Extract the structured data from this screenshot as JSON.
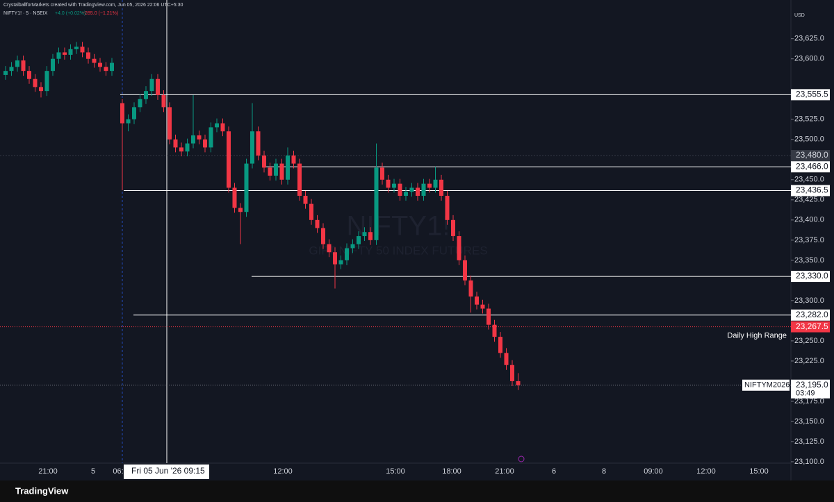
{
  "chart_data": {
    "type": "candlestick",
    "header": "CrystalballforMarkets created with TradingView.com, Jun 05, 2026 22:06 UTC+5:30",
    "symbol": "NIFTY1! · 5 · NSEIX",
    "change": "+4.0 (+0.02%)",
    "day_change": "−285.0 (−1.21%)",
    "watermark": "NIFTY1!",
    "watermark_sub": "GIFT NIFTY 50 INDEX FUTURES",
    "currency": "USD",
    "brand": "TradingView",
    "up_color": "#089981",
    "down_color": "#f23645",
    "ylim": [
      23100,
      23673
    ],
    "yticks": [
      {
        "value": 23625,
        "label": "23,625.0"
      },
      {
        "value": 23600,
        "label": "23,600.0"
      },
      {
        "value": 23525,
        "label": "23,525.0"
      },
      {
        "value": 23500,
        "label": "23,500.0"
      },
      {
        "value": 23450,
        "label": "23,450.0"
      },
      {
        "value": 23425,
        "label": "23,425.0"
      },
      {
        "value": 23400,
        "label": "23,400.0"
      },
      {
        "value": 23375,
        "label": "23,375.0"
      },
      {
        "value": 23350,
        "label": "23,350.0"
      },
      {
        "value": 23300,
        "label": "23,300.0"
      },
      {
        "value": 23250,
        "label": "23,250.0"
      },
      {
        "value": 23225,
        "label": "23,225.0"
      },
      {
        "value": 23175,
        "label": "23,175.0"
      },
      {
        "value": 23150,
        "label": "23,150.0"
      },
      {
        "value": 23125,
        "label": "23,125.0"
      },
      {
        "value": 23100,
        "label": "23,100.0"
      }
    ],
    "xaxis_labels": [
      "21:00",
      "5",
      "06:",
      "12:00",
      "15:00",
      "18:00",
      "21:00",
      "6",
      "8",
      "09:00",
      "12:00",
      "15:00"
    ],
    "crosshair_time": "Fri 05 Jun '26  09:15",
    "levels": [
      {
        "value": 23555.5,
        "label": "23,555.5"
      },
      {
        "value": 23466,
        "label": "23,466.0"
      },
      {
        "value": 23436.5,
        "label": "23,436.5"
      },
      {
        "value": 23330,
        "label": "23,330.0"
      },
      {
        "value": 23282,
        "label": "23,282.0"
      }
    ],
    "crosshair_price": {
      "value": 23480,
      "label": "23,480.0"
    },
    "daily_high": {
      "value": 23267.5,
      "label": "23,267.5",
      "name": "Daily High Range"
    },
    "last_price": {
      "value": 23195,
      "label": "23,195.0",
      "symbol": "NIFTYM2026",
      "countdown": "03:49"
    },
    "open": [
      23580,
      23585,
      23590,
      23598,
      23585,
      23575,
      23565,
      23560,
      23585,
      23600,
      23608,
      23605,
      23612,
      23615,
      23608,
      23600,
      23595,
      23590,
      23585,
      23545,
      23520,
      23525,
      23540,
      23550,
      23560,
      23575,
      23555,
      23540,
      23500,
      23490,
      23485,
      23495,
      23505,
      23500,
      23490,
      23515,
      23520,
      23510,
      23440,
      23415,
      23410,
      23470,
      23510,
      23480,
      23465,
      23455,
      23470,
      23450,
      23480,
      23470,
      23430,
      23420,
      23400,
      23390,
      23370,
      23360,
      23345,
      23350,
      23365,
      23370,
      23380,
      23385,
      23375,
      23465,
      23450,
      23440,
      23445,
      23430,
      23435,
      23440,
      23430,
      23445,
      23440,
      23450,
      23430,
      23400,
      23380,
      23350,
      23325,
      23305,
      23295,
      23290,
      23270,
      23255,
      23235,
      23220,
      23200
    ],
    "high": [
      23591,
      23596,
      23604,
      23604,
      23591,
      23581,
      23571,
      23591,
      23606,
      23614,
      23614,
      23618,
      23621,
      23621,
      23614,
      23606,
      23601,
      23596,
      23601,
      23550,
      23531,
      23546,
      23556,
      23566,
      23581,
      23581,
      23561,
      23546,
      23506,
      23496,
      23501,
      23555,
      23511,
      23506,
      23521,
      23526,
      23526,
      23516,
      23446,
      23421,
      23476,
      23545,
      23516,
      23486,
      23471,
      23476,
      23476,
      23490,
      23486,
      23476,
      23436,
      23426,
      23406,
      23396,
      23376,
      23366,
      23356,
      23371,
      23376,
      23386,
      23391,
      23391,
      23495,
      23471,
      23456,
      23451,
      23451,
      23441,
      23446,
      23446,
      23451,
      23451,
      23466,
      23456,
      23436,
      23406,
      23386,
      23356,
      23331,
      23311,
      23301,
      23296,
      23276,
      23261,
      23241,
      23226,
      23210
    ],
    "low": [
      23574,
      23579,
      23584,
      23579,
      23569,
      23559,
      23552,
      23554,
      23579,
      23594,
      23599,
      23599,
      23606,
      23602,
      23594,
      23589,
      23584,
      23579,
      23579,
      23437,
      23510,
      23519,
      23534,
      23544,
      23554,
      23549,
      23534,
      23494,
      23484,
      23479,
      23479,
      23489,
      23494,
      23484,
      23484,
      23509,
      23504,
      23434,
      23409,
      23370,
      23404,
      23464,
      23474,
      23459,
      23449,
      23449,
      23444,
      23444,
      23464,
      23424,
      23414,
      23394,
      23384,
      23364,
      23354,
      23315,
      23339,
      23344,
      23359,
      23364,
      23374,
      23369,
      23369,
      23444,
      23434,
      23434,
      23424,
      23424,
      23429,
      23424,
      23424,
      23434,
      23434,
      23424,
      23394,
      23374,
      23344,
      23319,
      23285,
      23289,
      23284,
      23264,
      23249,
      23229,
      23214,
      23194,
      23189
    ],
    "close": [
      23585,
      23590,
      23598,
      23585,
      23575,
      23565,
      23560,
      23585,
      23600,
      23608,
      23605,
      23612,
      23615,
      23608,
      23600,
      23595,
      23590,
      23585,
      23595,
      23520,
      23525,
      23540,
      23550,
      23560,
      23575,
      23555,
      23540,
      23500,
      23490,
      23485,
      23495,
      23505,
      23500,
      23490,
      23515,
      23520,
      23510,
      23440,
      23415,
      23410,
      23470,
      23510,
      23480,
      23465,
      23455,
      23470,
      23450,
      23480,
      23470,
      23430,
      23420,
      23400,
      23390,
      23370,
      23360,
      23345,
      23350,
      23365,
      23370,
      23380,
      23385,
      23375,
      23465,
      23450,
      23440,
      23445,
      23430,
      23435,
      23440,
      23430,
      23445,
      23440,
      23450,
      23430,
      23400,
      23380,
      23350,
      23325,
      23305,
      23295,
      23290,
      23270,
      23255,
      23235,
      23220,
      23200,
      23195
    ]
  }
}
